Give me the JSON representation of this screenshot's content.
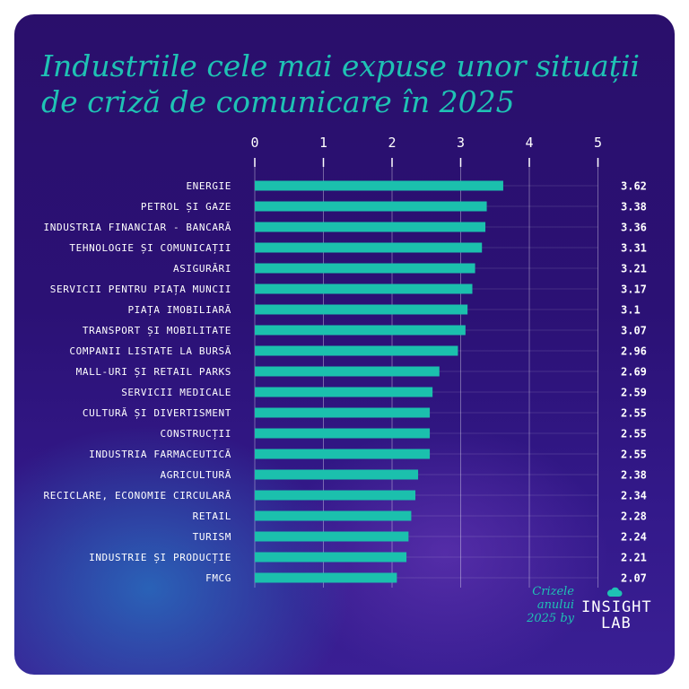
{
  "title": {
    "line1": "Industriile cele mai expuse unor situații",
    "line2": "de criză de comunicare în 2025"
  },
  "brand": {
    "tagline_line1": "Crizele",
    "tagline_line2": "anului",
    "tagline_line3": "2025 by",
    "logo_line1": "INSIGHT",
    "logo_line2": "LAB",
    "cloud_icon": "cloud-icon"
  },
  "colors": {
    "bar": "#1bc0ad",
    "title": "#1fc2b4",
    "grid": "#ffffff"
  },
  "chart_data": {
    "type": "bar",
    "orientation": "horizontal",
    "title": "Industriile cele mai expuse unor situații de criză de comunicare în 2025",
    "xlim": [
      0,
      5
    ],
    "xticks": [
      "0",
      "1",
      "2",
      "3",
      "4",
      "5"
    ],
    "categories": [
      "ENERGIE",
      "PETROL ȘI GAZE",
      "INDUSTRIA FINANCIAR - BANCARĂ",
      "TEHNOLOGIE ȘI COMUNICAȚII",
      "ASIGURĂRI",
      "SERVICII PENTRU PIAȚA MUNCII",
      "PIAȚA IMOBILIARĂ",
      "TRANSPORT ȘI MOBILITATE",
      "COMPANII LISTATE LA BURSĂ",
      "MALL-URI ȘI RETAIL PARKS",
      "SERVICII MEDICALE",
      "CULTURĂ ȘI DIVERTISMENT",
      "CONSTRUCȚII",
      "INDUSTRIA FARMACEUTICĂ",
      "AGRICULTURĂ",
      "RECICLARE, ECONOMIE CIRCULARĂ",
      "RETAIL",
      "TURISM",
      "INDUSTRIE ȘI PRODUCȚIE",
      "FMCG"
    ],
    "values": [
      3.62,
      3.38,
      3.36,
      3.31,
      3.21,
      3.17,
      3.1,
      3.07,
      2.96,
      2.69,
      2.59,
      2.55,
      2.55,
      2.55,
      2.38,
      2.34,
      2.28,
      2.24,
      2.21,
      2.07
    ],
    "value_labels": [
      "3.62",
      "3.38",
      "3.36",
      "3.31",
      "3.21",
      "3.17",
      "3.1",
      "3.07",
      "2.96",
      "2.69",
      "2.59",
      "2.55",
      "2.55",
      "2.55",
      "2.38",
      "2.34",
      "2.28",
      "2.24",
      "2.21",
      "2.07"
    ],
    "grid": true
  }
}
